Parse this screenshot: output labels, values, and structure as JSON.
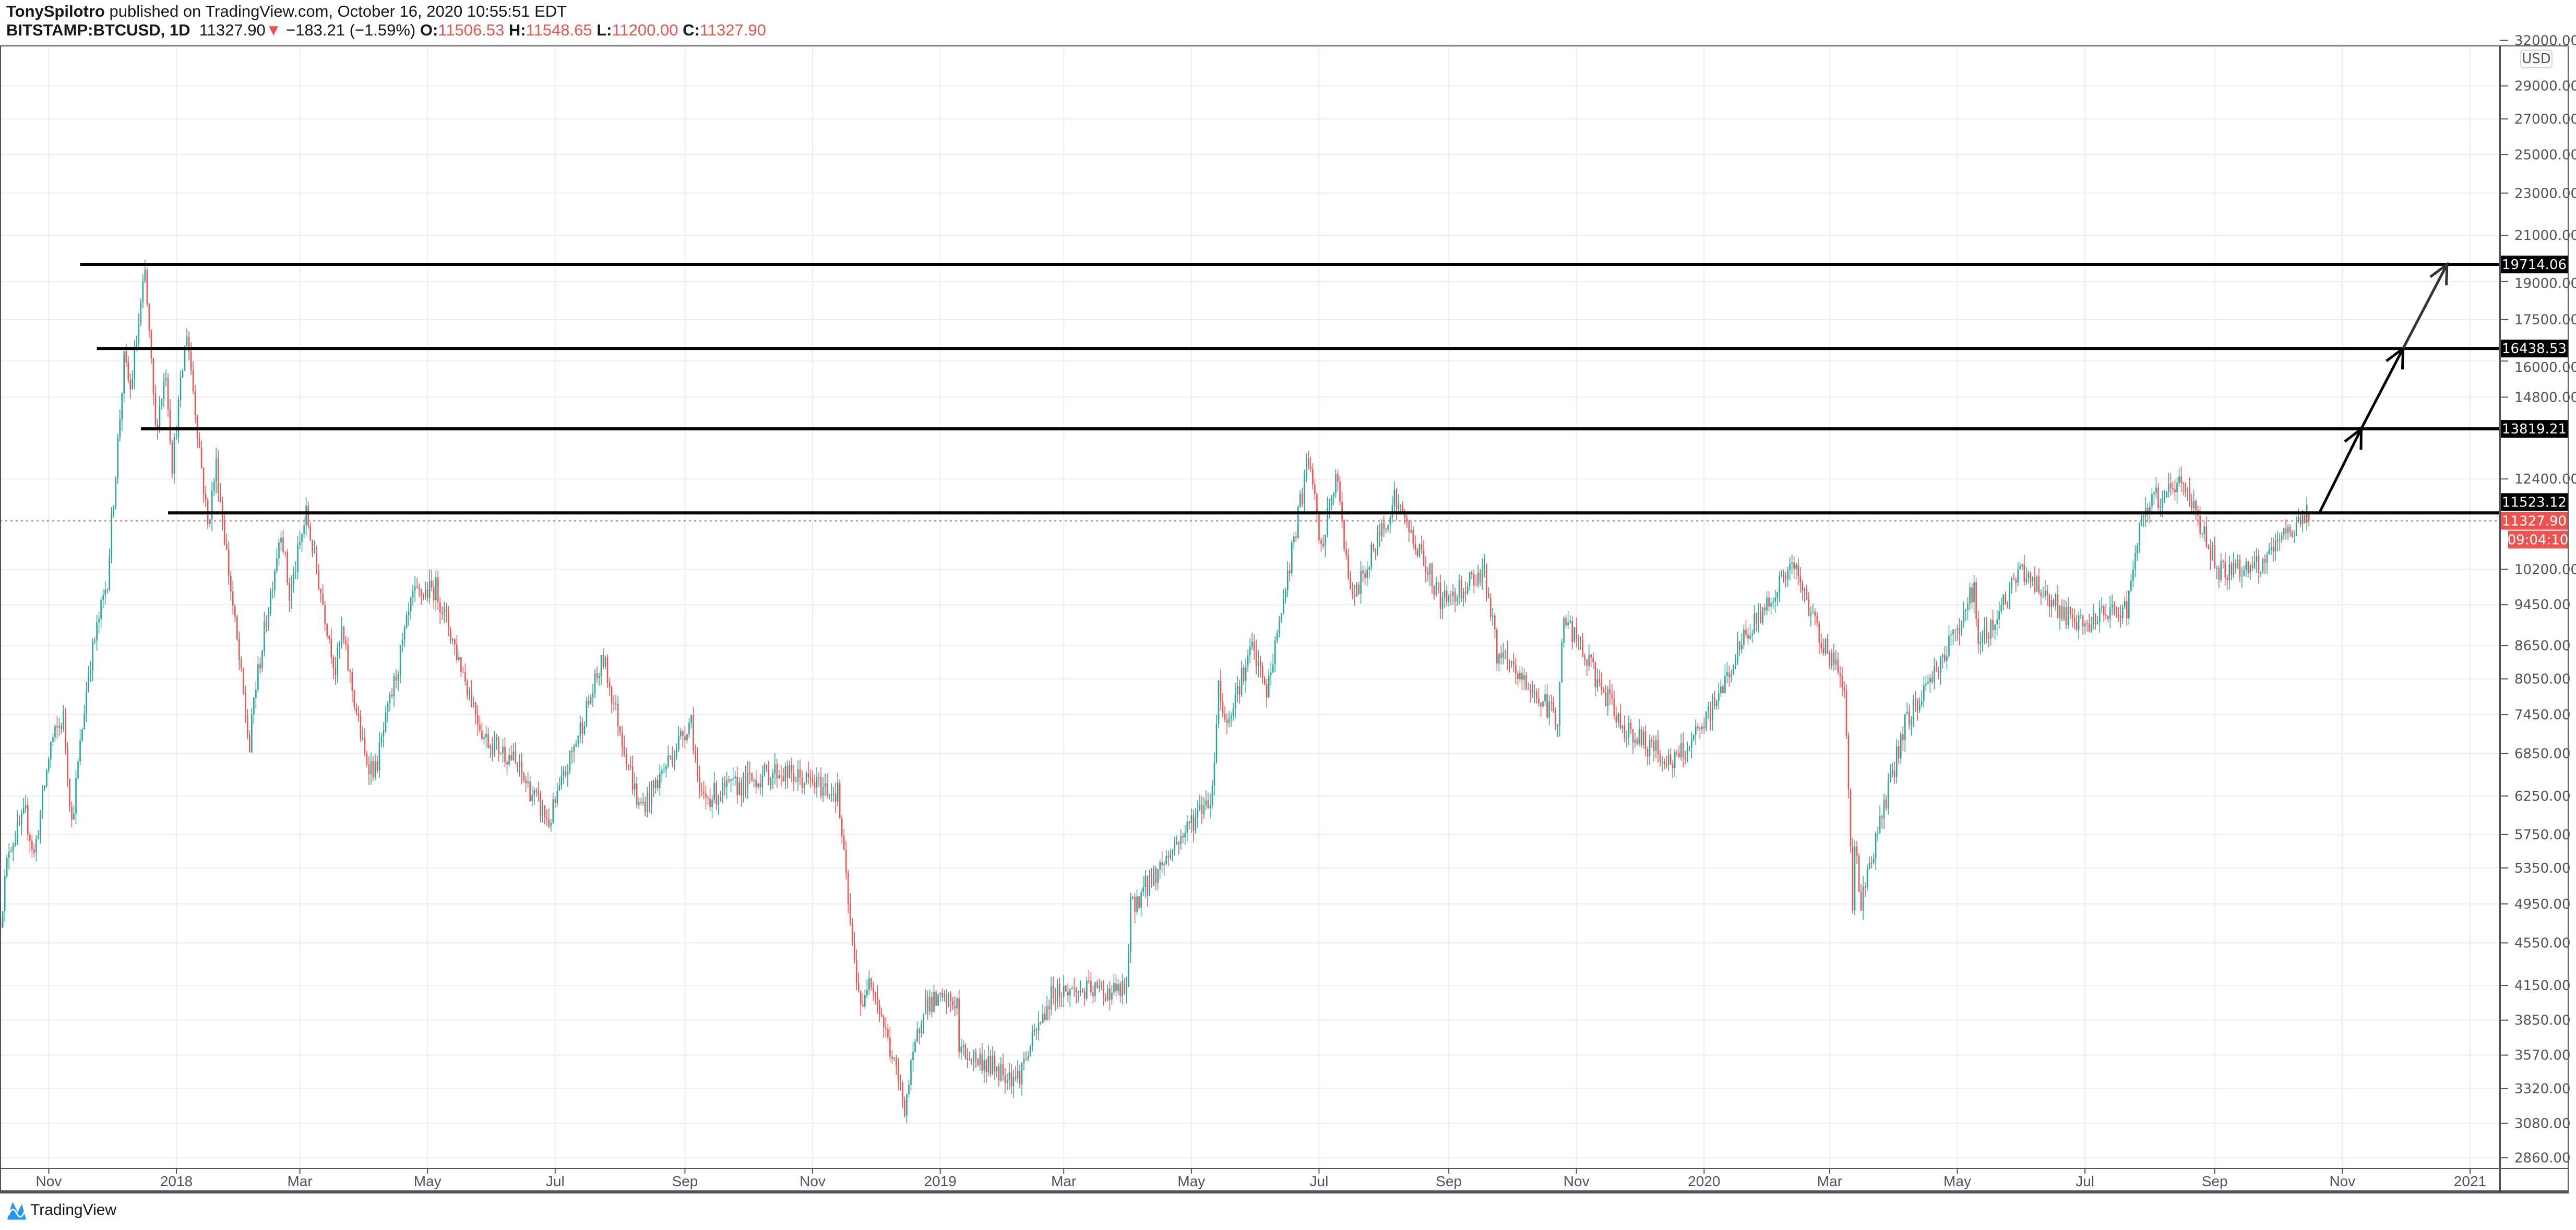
{
  "header": {
    "author": "TonySpilotro",
    "published": "published on TradingView.com, October 16, 2020 10:55:51 EDT",
    "symbol": "BITSTAMP:BTCUSD, 1D",
    "last": "11327.90",
    "change": "−183.21 (−1.59%)",
    "o_label": "O:",
    "o": "11506.53",
    "h_label": "H:",
    "h": "11548.65",
    "l_label": "L:",
    "l": "11200.00",
    "c_label": "C:",
    "c": "11327.90"
  },
  "footer": {
    "brand": "TradingView"
  },
  "colors": {
    "up": "#26a69a",
    "down": "#ef5350",
    "grid": "#e9eef3",
    "level_line": "#000000",
    "price_tag": "#ef5350"
  },
  "chart_data": {
    "type": "candlestick",
    "interval": "1D",
    "y_scale": "log",
    "ylim": [
      2700,
      33000
    ],
    "currency_badge": "USD",
    "y_ticks": [
      "32000.00",
      "29000.00",
      "27000.00",
      "25000.00",
      "23000.00",
      "21000.00",
      "19000.00",
      "17500.00",
      "16000.00",
      "14800.00",
      "12400.00",
      "10200.00",
      "9450.00",
      "8650.00",
      "8050.00",
      "7450.00",
      "6850.00",
      "6250.00",
      "5750.00",
      "5350.00",
      "4950.00",
      "4550.00",
      "4150.00",
      "3850.00",
      "3570.00",
      "3320.00",
      "3080.00",
      "2860.00"
    ],
    "x_ticks": [
      {
        "label": "Nov",
        "date": "2017-11-01"
      },
      {
        "label": "2018",
        "date": "2018-01-01"
      },
      {
        "label": "Mar",
        "date": "2018-03-01"
      },
      {
        "label": "May",
        "date": "2018-05-01"
      },
      {
        "label": "Jul",
        "date": "2018-07-01"
      },
      {
        "label": "Sep",
        "date": "2018-09-01"
      },
      {
        "label": "Nov",
        "date": "2018-11-01"
      },
      {
        "label": "2019",
        "date": "2019-01-01"
      },
      {
        "label": "Mar",
        "date": "2019-03-01"
      },
      {
        "label": "May",
        "date": "2019-05-01"
      },
      {
        "label": "Jul",
        "date": "2019-07-01"
      },
      {
        "label": "Sep",
        "date": "2019-09-01"
      },
      {
        "label": "Nov",
        "date": "2019-11-01"
      },
      {
        "label": "2020",
        "date": "2020-01-01"
      },
      {
        "label": "Mar",
        "date": "2020-03-01"
      },
      {
        "label": "May",
        "date": "2020-05-01"
      },
      {
        "label": "Jul",
        "date": "2020-07-01"
      },
      {
        "label": "Sep",
        "date": "2020-09-01"
      },
      {
        "label": "Nov",
        "date": "2020-11-01"
      },
      {
        "label": "2021",
        "date": "2021-01-01"
      }
    ],
    "price_path": [
      [
        "2017-10-09",
        4800
      ],
      [
        "2017-10-13",
        5600
      ],
      [
        "2017-10-21",
        6000
      ],
      [
        "2017-10-25",
        5500
      ],
      [
        "2017-11-02",
        7000
      ],
      [
        "2017-11-08",
        7400
      ],
      [
        "2017-11-12",
        5900
      ],
      [
        "2017-11-20",
        8200
      ],
      [
        "2017-11-29",
        10000
      ],
      [
        "2017-12-07",
        16000
      ],
      [
        "2017-12-10",
        15000
      ],
      [
        "2017-12-17",
        19300
      ],
      [
        "2017-12-22",
        13800
      ],
      [
        "2017-12-27",
        15700
      ],
      [
        "2017-12-30",
        12800
      ],
      [
        "2018-01-06",
        17100
      ],
      [
        "2018-01-16",
        11200
      ],
      [
        "2018-01-20",
        12800
      ],
      [
        "2018-02-05",
        6900
      ],
      [
        "2018-02-07",
        7700
      ],
      [
        "2018-02-20",
        11200
      ],
      [
        "2018-02-24",
        9600
      ],
      [
        "2018-03-04",
        11500
      ],
      [
        "2018-03-18",
        8200
      ],
      [
        "2018-03-21",
        8900
      ],
      [
        "2018-04-01",
        6800
      ],
      [
        "2018-04-06",
        6600
      ],
      [
        "2018-04-24",
        9600
      ],
      [
        "2018-05-05",
        9800
      ],
      [
        "2018-05-28",
        7100
      ],
      [
        "2018-06-10",
        6800
      ],
      [
        "2018-06-28",
        5900
      ],
      [
        "2018-07-24",
        8400
      ],
      [
        "2018-08-10",
        6100
      ],
      [
        "2018-08-14",
        6200
      ],
      [
        "2018-09-04",
        7400
      ],
      [
        "2018-09-08",
        6200
      ],
      [
        "2018-10-15",
        6600
      ],
      [
        "2018-11-13",
        6300
      ],
      [
        "2018-11-20",
        4500
      ],
      [
        "2018-11-25",
        3900
      ],
      [
        "2018-11-28",
        4300
      ],
      [
        "2018-12-15",
        3200
      ],
      [
        "2018-12-24",
        4000
      ],
      [
        "2019-01-09",
        4000
      ],
      [
        "2019-01-10",
        3600
      ],
      [
        "2019-02-07",
        3400
      ],
      [
        "2019-02-24",
        4100
      ],
      [
        "2019-03-31",
        4100
      ],
      [
        "2019-04-02",
        4900
      ],
      [
        "2019-05-11",
        6300
      ],
      [
        "2019-05-14",
        8000
      ],
      [
        "2019-05-17",
        7300
      ],
      [
        "2019-05-30",
        8600
      ],
      [
        "2019-06-06",
        7800
      ],
      [
        "2019-06-26",
        13000
      ],
      [
        "2019-07-02",
        10600
      ],
      [
        "2019-07-09",
        12500
      ],
      [
        "2019-07-17",
        9500
      ],
      [
        "2019-08-06",
        11900
      ],
      [
        "2019-08-29",
        9500
      ],
      [
        "2019-09-18",
        10200
      ],
      [
        "2019-09-24",
        8500
      ],
      [
        "2019-10-23",
        7400
      ],
      [
        "2019-10-26",
        9200
      ],
      [
        "2019-11-22",
        7300
      ],
      [
        "2019-12-17",
        6700
      ],
      [
        "2019-12-31",
        7200
      ],
      [
        "2020-01-19",
        8700
      ],
      [
        "2020-02-12",
        10300
      ],
      [
        "2020-02-28",
        8600
      ],
      [
        "2020-03-08",
        8000
      ],
      [
        "2020-03-12",
        4900
      ],
      [
        "2020-03-13",
        5600
      ],
      [
        "2020-03-16",
        5000
      ],
      [
        "2020-04-06",
        7300
      ],
      [
        "2020-04-29",
        8800
      ],
      [
        "2020-05-09",
        9800
      ],
      [
        "2020-05-11",
        8600
      ],
      [
        "2020-06-01",
        10200
      ],
      [
        "2020-06-27",
        9000
      ],
      [
        "2020-07-21",
        9400
      ],
      [
        "2020-07-27",
        11000
      ],
      [
        "2020-08-01",
        11800
      ],
      [
        "2020-08-17",
        12300
      ],
      [
        "2020-09-03",
        10200
      ],
      [
        "2020-09-23",
        10250
      ],
      [
        "2020-10-10",
        11300
      ],
      [
        "2020-10-15",
        11500
      ]
    ],
    "last_candle": {
      "date": "2020-10-16",
      "open": 11506.53,
      "high": 11548.65,
      "low": 11200.0,
      "close": 11327.9
    },
    "horizontal_levels": [
      {
        "price": 19714.06,
        "label": "19714.06",
        "start": "2017-11-16"
      },
      {
        "price": 16438.53,
        "label": "16438.53",
        "start": "2017-11-24"
      },
      {
        "price": 13819.21,
        "label": "13819.21",
        "start": "2017-12-15"
      },
      {
        "price": 11523.12,
        "label": "11523.12",
        "start": "2017-12-28"
      }
    ],
    "projection_arrows": [
      {
        "from": [
          "2020-10-21",
          11523.12
        ],
        "to": [
          "2020-11-10",
          13819.21
        ]
      },
      {
        "from": [
          "2020-11-10",
          13819.21
        ],
        "to": [
          "2020-11-30",
          16438.53
        ]
      },
      {
        "from": [
          "2020-11-30",
          16438.53
        ],
        "to": [
          "2020-12-21",
          19714.06
        ]
      }
    ],
    "last_price": {
      "label": "11327.90",
      "price": 11327.9,
      "countdown": "09:04:10"
    }
  }
}
